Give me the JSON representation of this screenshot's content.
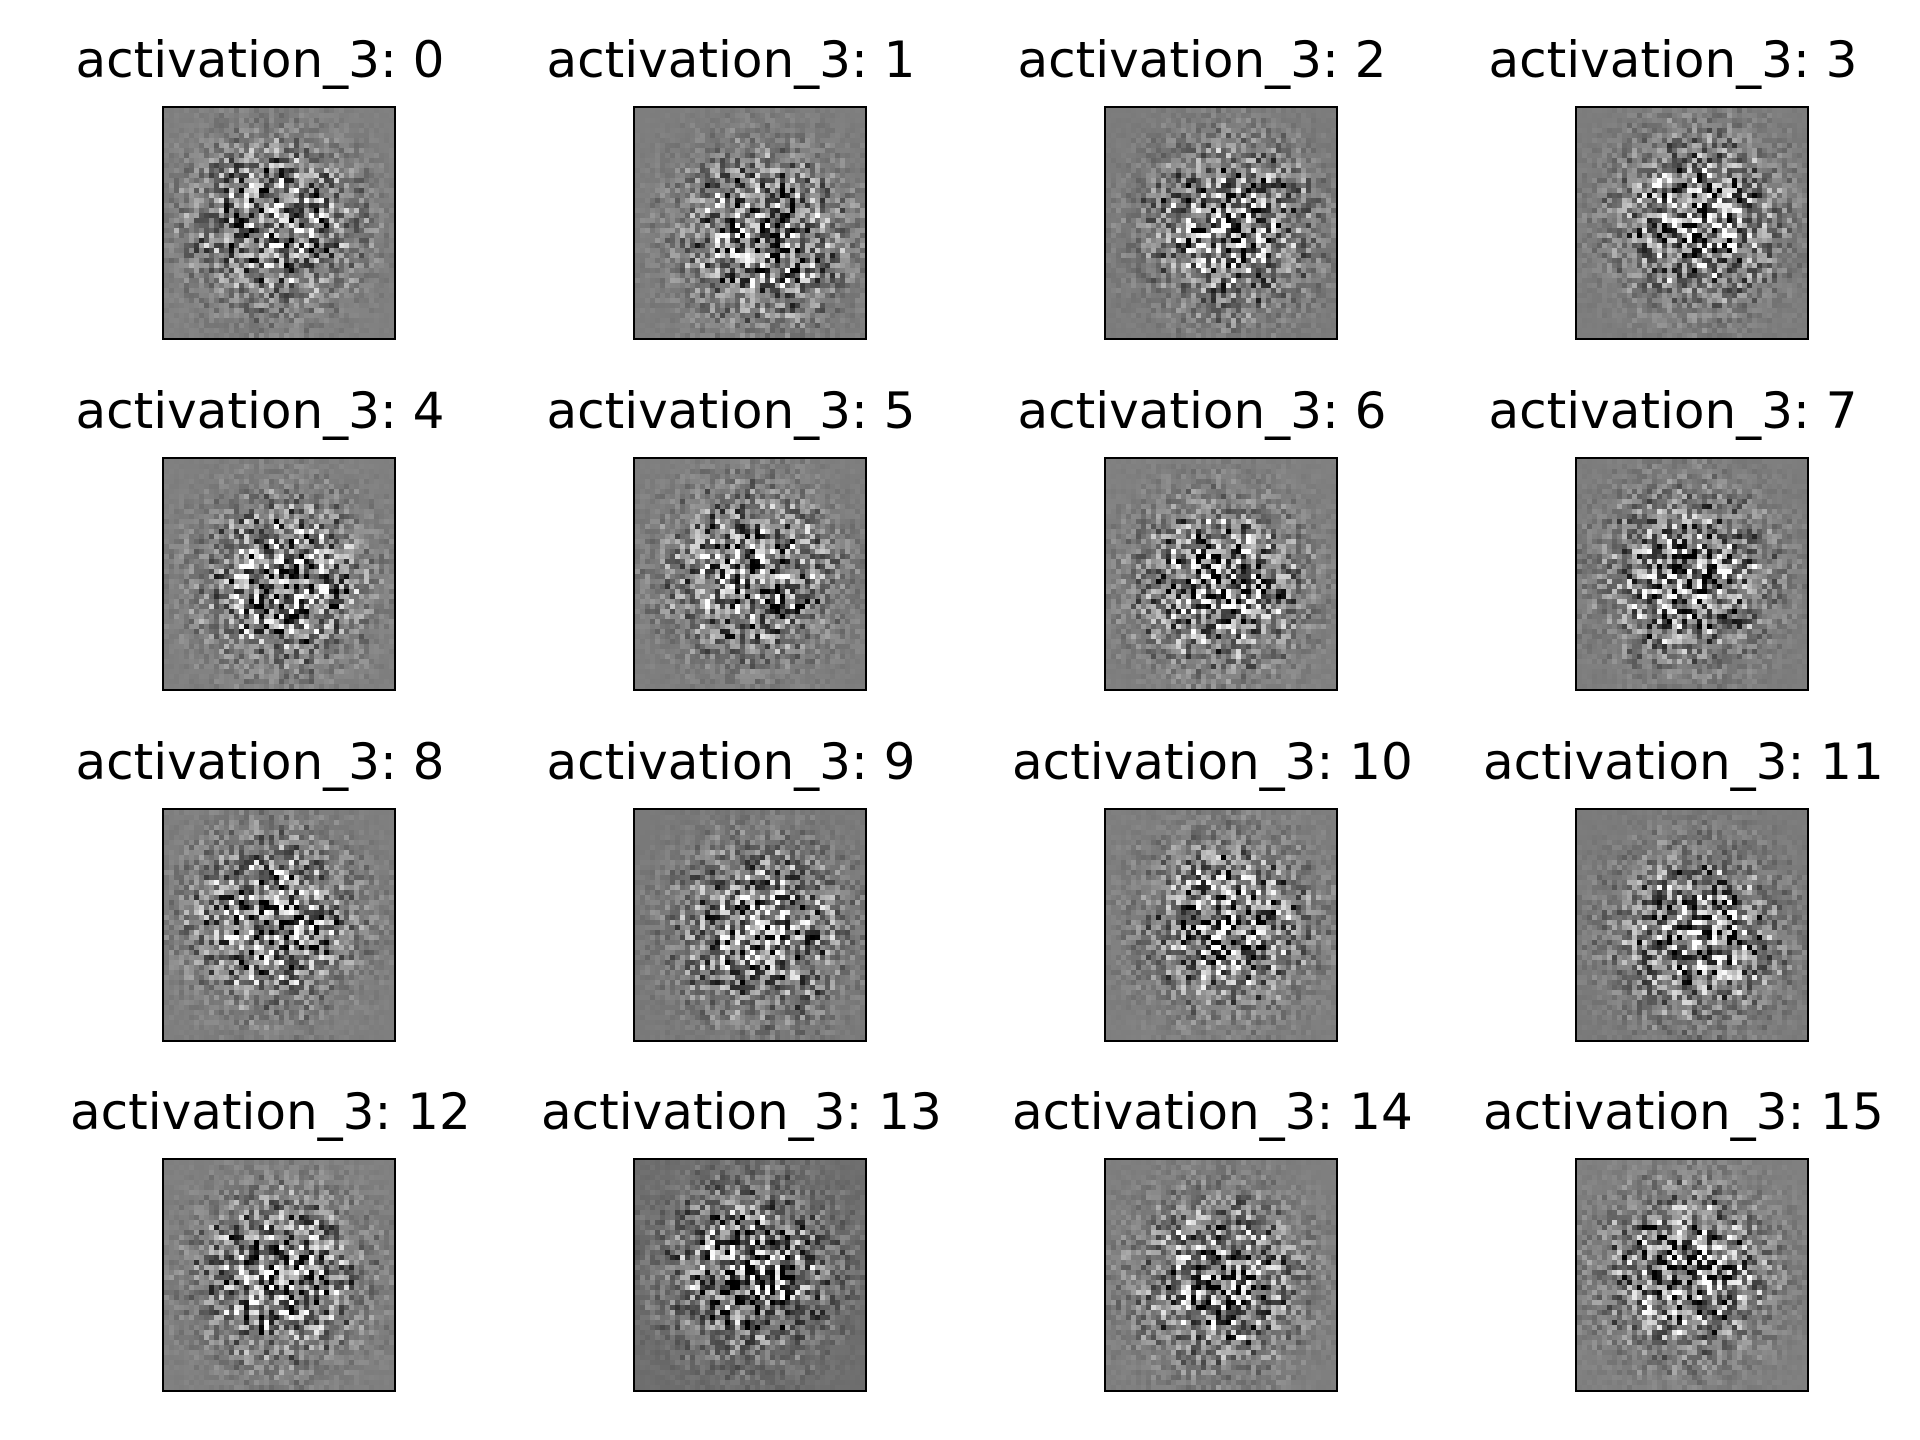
{
  "figure": {
    "background": "#ffffff",
    "panels": [
      {
        "title": "activation_3: 0",
        "base_gray": "#808080"
      },
      {
        "title": "activation_3: 1",
        "base_gray": "#7e7e7e"
      },
      {
        "title": "activation_3: 2",
        "base_gray": "#7c7c7c"
      },
      {
        "title": "activation_3: 3",
        "base_gray": "#7d7d7d"
      },
      {
        "title": "activation_3: 4",
        "base_gray": "#808080"
      },
      {
        "title": "activation_3: 5",
        "base_gray": "#7e7e7e"
      },
      {
        "title": "activation_3: 6",
        "base_gray": "#808080"
      },
      {
        "title": "activation_3: 7",
        "base_gray": "#7d7d7d"
      },
      {
        "title": "activation_3: 8",
        "base_gray": "#7f7f7f"
      },
      {
        "title": "activation_3: 9",
        "base_gray": "#7a7a7a"
      },
      {
        "title": "activation_3: 10",
        "base_gray": "#7f7f7f"
      },
      {
        "title": "activation_3: 11",
        "base_gray": "#7b7b7b"
      },
      {
        "title": "activation_3: 12",
        "base_gray": "#808080"
      },
      {
        "title": "activation_3: 13",
        "base_gray": "#6e6e6e"
      },
      {
        "title": "activation_3: 14",
        "base_gray": "#7f7f7f"
      },
      {
        "title": "activation_3: 15",
        "base_gray": "#808080"
      }
    ]
  }
}
